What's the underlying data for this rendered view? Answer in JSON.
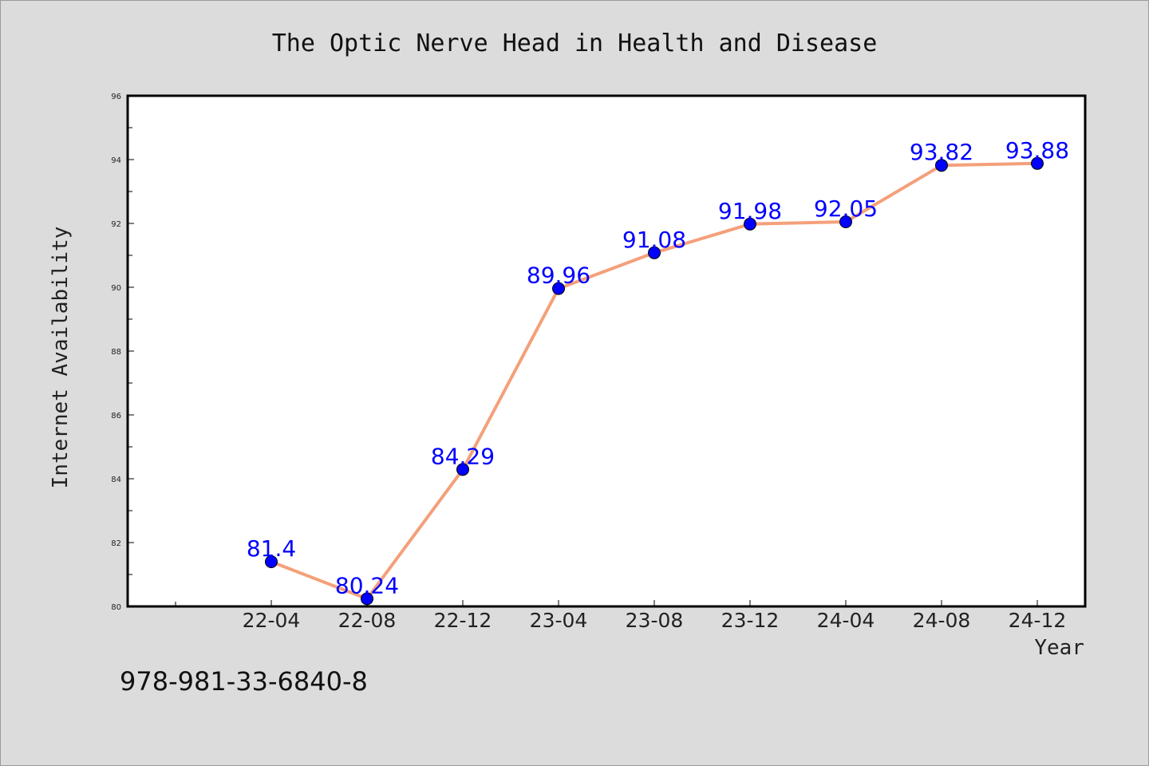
{
  "chart_data": {
    "type": "line",
    "title": "The Optic Nerve Head in Health and Disease",
    "xlabel": "Year",
    "ylabel": "Internet Availability",
    "categories": [
      "22-04",
      "22-08",
      "22-12",
      "23-04",
      "23-08",
      "23-12",
      "24-04",
      "24-08",
      "24-12"
    ],
    "series": [
      {
        "values": [
          81.4,
          80.24,
          84.29,
          89.96,
          91.08,
          91.98,
          92.05,
          93.82,
          93.88
        ],
        "labels": [
          "81.4",
          "80.24",
          "84.29",
          "89.96",
          "91.08",
          "91.98",
          "92.05",
          "93.82",
          "93.88"
        ],
        "line_color": "#f4a07a",
        "marker_color": "#0000ff"
      }
    ],
    "ylim": [
      80,
      96
    ],
    "yticks": [
      "80",
      "82",
      "84",
      "86",
      "88",
      "90",
      "92",
      "94",
      "96"
    ],
    "grid": false,
    "legend": "none"
  },
  "footer": {
    "isbn": "978-981-33-6840-8"
  },
  "colors": {
    "background": "#dcdcdc",
    "plot_background": "#ffffff",
    "line": "#f4a07a",
    "marker": "#0000ff",
    "data_label": "#0000ff"
  }
}
